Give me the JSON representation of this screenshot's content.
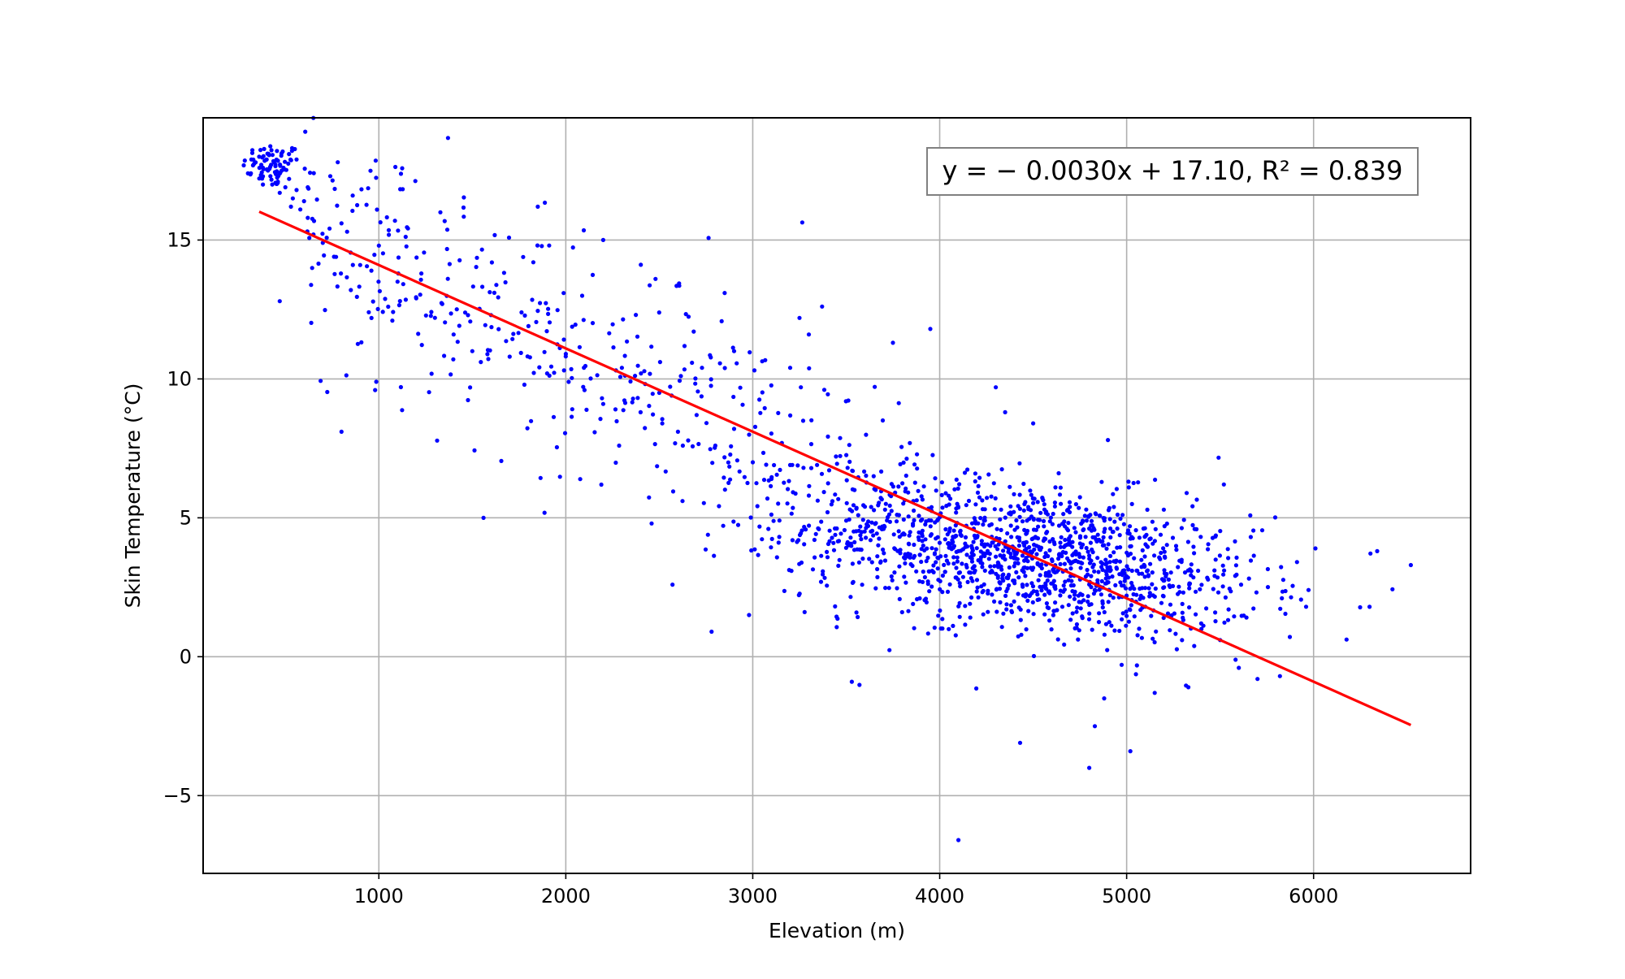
{
  "chart_data": {
    "type": "scatter",
    "title": "",
    "xlabel": "Elevation (m)",
    "ylabel": "Skin Temperature (°C)",
    "xlim": [
      60,
      6840
    ],
    "ylim": [
      -7.8,
      19.4
    ],
    "xticks": [
      1000,
      2000,
      3000,
      4000,
      5000,
      6000
    ],
    "xtick_labels": [
      "1000",
      "2000",
      "3000",
      "4000",
      "5000",
      "6000"
    ],
    "yticks": [
      -5,
      0,
      5,
      10,
      15
    ],
    "ytick_labels": [
      "−5",
      "0",
      "5",
      "10",
      "15"
    ],
    "grid": true,
    "annotation": {
      "text": "y = − 0.0030x + 17.10, R² = 0.839",
      "position": "top-right"
    },
    "series": [
      {
        "kind": "scatter",
        "color": "#0000ff",
        "approx_point_count": 2000,
        "points": [
          [
            360,
            18.0
          ],
          [
            380,
            17.6
          ],
          [
            400,
            17.9
          ],
          [
            420,
            17.3
          ],
          [
            440,
            17.8
          ],
          [
            460,
            17.1
          ],
          [
            480,
            17.5
          ],
          [
            500,
            16.9
          ],
          [
            520,
            17.2
          ],
          [
            540,
            16.5
          ],
          [
            560,
            16.8
          ],
          [
            580,
            16.1
          ],
          [
            600,
            16.4
          ],
          [
            380,
            17.0
          ],
          [
            410,
            18.1
          ],
          [
            430,
            17.0
          ],
          [
            470,
            16.7
          ],
          [
            490,
            17.6
          ],
          [
            530,
            16.2
          ],
          [
            620,
            15.8
          ],
          [
            650,
            15.2
          ],
          [
            700,
            14.9
          ],
          [
            760,
            14.4
          ],
          [
            800,
            15.6
          ],
          [
            850,
            13.2
          ],
          [
            900,
            14.1
          ],
          [
            960,
            13.9
          ],
          [
            1000,
            14.8
          ],
          [
            1050,
            12.6
          ],
          [
            1100,
            13.5
          ],
          [
            1200,
            12.9
          ],
          [
            1300,
            12.2
          ],
          [
            1400,
            11.6
          ],
          [
            1500,
            11.0
          ],
          [
            1600,
            12.3
          ],
          [
            1700,
            10.8
          ],
          [
            1800,
            11.9
          ],
          [
            1900,
            10.2
          ],
          [
            2000,
            10.9
          ],
          [
            2100,
            9.6
          ],
          [
            2200,
            9.1
          ],
          [
            2300,
            10.4
          ],
          [
            2400,
            8.8
          ],
          [
            2500,
            9.5
          ],
          [
            2600,
            8.1
          ],
          [
            2700,
            8.7
          ],
          [
            2800,
            7.6
          ],
          [
            2900,
            8.2
          ],
          [
            3000,
            7.0
          ],
          [
            3100,
            6.4
          ],
          [
            3200,
            6.9
          ],
          [
            3300,
            5.8
          ],
          [
            3400,
            5.2
          ],
          [
            3500,
            4.9
          ],
          [
            3600,
            5.4
          ],
          [
            3700,
            4.6
          ],
          [
            3800,
            4.4
          ],
          [
            3900,
            4.9
          ],
          [
            4000,
            4.1
          ],
          [
            4100,
            3.8
          ],
          [
            4200,
            4.3
          ],
          [
            4300,
            3.6
          ],
          [
            4400,
            3.9
          ],
          [
            4500,
            3.2
          ],
          [
            4600,
            3.5
          ],
          [
            4700,
            2.9
          ],
          [
            4800,
            2.6
          ],
          [
            4900,
            3.1
          ],
          [
            5000,
            2.2
          ],
          [
            5100,
            1.8
          ],
          [
            5200,
            2.5
          ],
          [
            5300,
            1.4
          ],
          [
            5400,
            1.0
          ],
          [
            5500,
            0.6
          ],
          [
            5600,
            -0.4
          ],
          [
            5700,
            -0.8
          ],
          [
            300,
            17.4
          ],
          [
            560,
            17.9
          ],
          [
            620,
            16.9
          ],
          [
            740,
            17.3
          ],
          [
            780,
            17.8
          ],
          [
            860,
            16.6
          ],
          [
            470,
            12.8
          ],
          [
            800,
            8.1
          ],
          [
            980,
            9.6
          ],
          [
            1560,
            5.0
          ],
          [
            1850,
            16.2
          ],
          [
            2780,
            0.9
          ],
          [
            2980,
            1.5
          ],
          [
            3530,
            -0.9
          ],
          [
            3950,
            11.8
          ],
          [
            4100,
            -6.6
          ],
          [
            4430,
            -3.1
          ],
          [
            4800,
            -4.0
          ],
          [
            5020,
            -3.4
          ],
          [
            4830,
            -2.5
          ],
          [
            6010,
            3.9
          ],
          [
            6340,
            3.8
          ],
          [
            6520,
            3.3
          ],
          [
            5960,
            1.8
          ],
          [
            5820,
            -0.7
          ],
          [
            5520,
            6.2
          ],
          [
            5010,
            6.3
          ],
          [
            4350,
            8.8
          ],
          [
            4300,
            9.7
          ],
          [
            4900,
            7.8
          ],
          [
            3300,
            11.6
          ],
          [
            3750,
            11.3
          ],
          [
            2200,
            15.0
          ],
          [
            2480,
            13.6
          ],
          [
            2900,
            11.0
          ],
          [
            3200,
            10.4
          ],
          [
            4500,
            8.4
          ],
          [
            4880,
            -1.5
          ],
          [
            5150,
            -1.3
          ],
          [
            5330,
            -1.1
          ]
        ],
        "distribution": {
          "dense_cluster_1": {
            "x_center": 430,
            "x_spread": 80,
            "y_center": 17.7,
            "y_spread": 0.4,
            "count": 70
          },
          "dense_cluster_2": {
            "x_center": 4500,
            "x_spread": 600,
            "y_center": 3.6,
            "y_spread": 1.3,
            "count": 1300
          },
          "spread_band": {
            "x_range": [
              600,
              4000
            ],
            "y_at_x_start": 15.4,
            "y_at_x_end": 4.5,
            "y_spread": 2.3,
            "count": 450
          }
        }
      },
      {
        "kind": "line",
        "color": "#ff0000",
        "x": [
          360,
          6520
        ],
        "y": [
          16.02,
          -2.46
        ]
      }
    ]
  }
}
